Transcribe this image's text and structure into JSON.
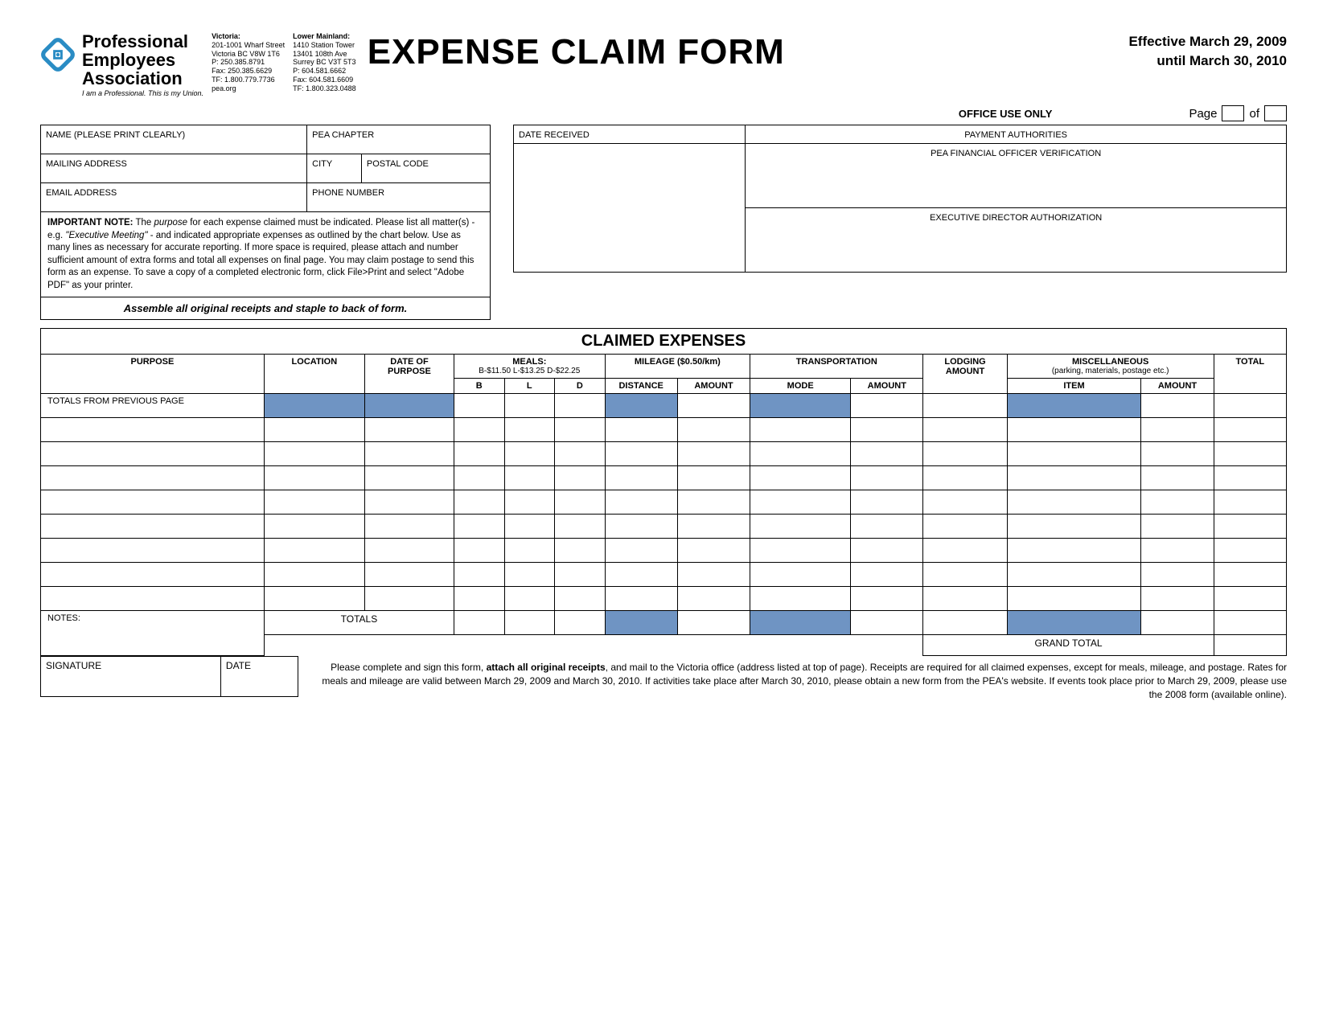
{
  "org": {
    "name_line1": "Professional",
    "name_line2": "Employees",
    "name_line3": "Association",
    "tagline": "I am a Professional. This is my Union.",
    "logo_color": "#2a8cc4"
  },
  "addr_victoria": {
    "title": "Victoria:",
    "l1": "201-1001 Wharf Street",
    "l2": "Victoria BC V8W 1T6",
    "l3": "P: 250.385.8791",
    "l4": "Fax: 250.385.6629",
    "l5": "TF: 1.800.779.7736",
    "l6": "pea.org"
  },
  "addr_lm": {
    "title": "Lower Mainland:",
    "l1": "1410 Station Tower",
    "l2": "13401 108th Ave",
    "l3": "Surrey BC V3T 5T3",
    "l4": "P: 604.581.6662",
    "l5": "Fax: 604.581.6609",
    "l6": "TF: 1.800.323.0488"
  },
  "title": "EXPENSE CLAIM FORM",
  "effective": {
    "line1": "Effective March 29, 2009",
    "line2": "until March 30, 2010"
  },
  "office_use": "OFFICE USE ONLY",
  "page_label": "Page",
  "of_label": "of",
  "fields": {
    "name": "NAME (PLEASE PRINT CLEARLY)",
    "chapter": "PEA CHAPTER",
    "mailing": "MAILING ADDRESS",
    "city": "CITY",
    "postal": "POSTAL CODE",
    "email": "EMAIL ADDRESS",
    "phone": "PHONE NUMBER",
    "date_received": "DATE RECEIVED",
    "payment_auth": "PAYMENT AUTHORITIES",
    "fin_officer": "PEA FINANCIAL OFFICER VERIFICATION",
    "exec_dir": "EXECUTIVE DIRECTOR AUTHORIZATION"
  },
  "note": {
    "lead": "IMPORTANT NOTE:",
    "body": " The purpose for each expense claimed must be indicated. Please list all matter(s) - e.g. \"Executive Meeting\" - and indicated appropriate expenses as outlined by the chart below. Use as many lines as necessary for accurate reporting. If more space is required, please attach and number sufficient amount of extra forms and total all expenses on final page. You may claim postage to send this form as an expense. To save a copy of a completed electronic form, click File>Print and select \"Adobe PDF\" as your printer.",
    "purpose_word": "purpose"
  },
  "assemble": "Assemble all original receipts and staple to back of form.",
  "claimed_header": "CLAIMED EXPENSES",
  "cols": {
    "purpose": "PURPOSE",
    "location": "LOCATION",
    "date_of_purpose": "DATE OF PURPOSE",
    "meals": "MEALS:",
    "meals_rates": "B-$11.50 L-$13.25 D-$22.25",
    "b": "B",
    "l": "L",
    "d": "D",
    "mileage": "MILEAGE ($0.50/km)",
    "distance": "DISTANCE",
    "amount": "AMOUNT",
    "transportation": "TRANSPORTATION",
    "mode": "MODE",
    "lodging": "LODGING AMOUNT",
    "misc": "MISCELLANEOUS",
    "misc_sub": "(parking, materials, postage etc.)",
    "item": "ITEM",
    "total": "TOTAL"
  },
  "rows": {
    "totals_prev": "TOTALS FROM PREVIOUS PAGE",
    "notes": "NOTES:",
    "totals": "TOTALS",
    "grand_total": "GRAND TOTAL",
    "signature": "SIGNATURE",
    "date": "DATE"
  },
  "shade_color": "#6f94c3",
  "footer": "Please complete and sign this form, attach all original receipts, and mail to the Victoria office (address listed at top of page). Receipts are required for all claimed expenses, except for meals, mileage, and postage. Rates for meals and mileage are valid between  March 29, 2009 and March 30, 2010. If activities take place after March 30, 2010, please obtain a new form from the PEA's website. If events took place prior to March 29, 2009, please use the 2008 form (available online).",
  "footer_bold": "attach all original receipts",
  "empty_rows": 8
}
